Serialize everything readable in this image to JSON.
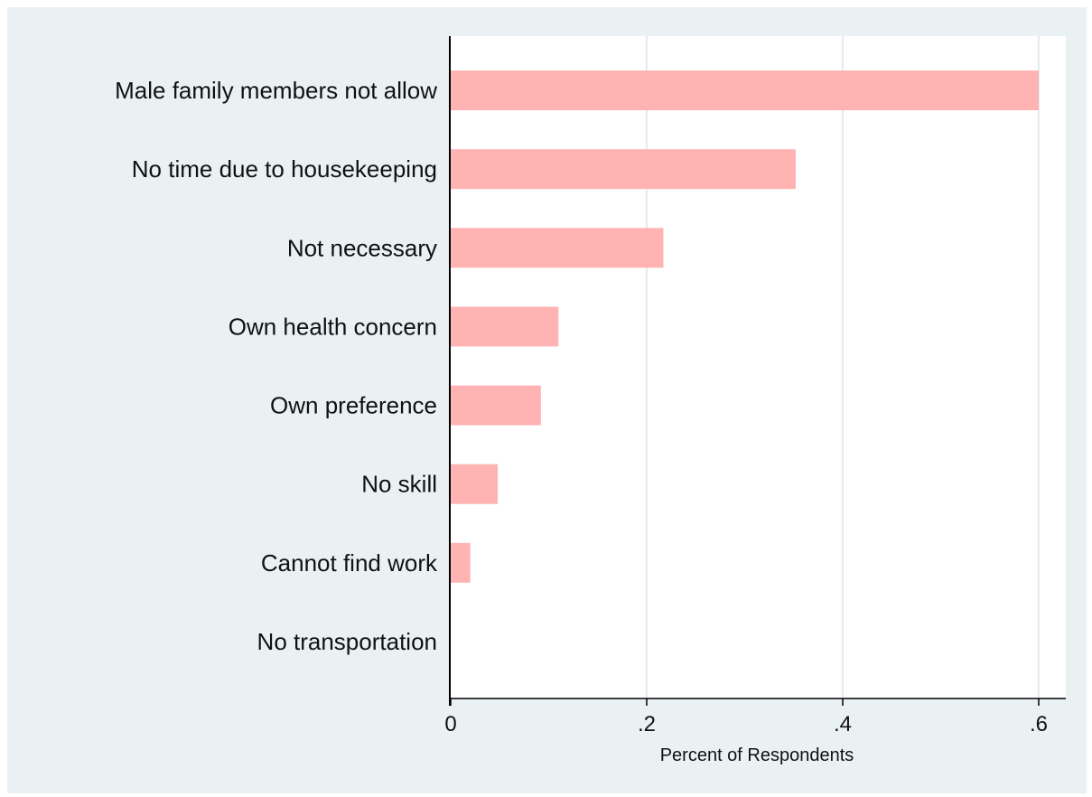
{
  "chart_data": {
    "type": "bar",
    "orientation": "horizontal",
    "categories": [
      "Male family members not allow",
      "No time due to housekeeping",
      "Not necessary",
      "Own health concern",
      "Own preference",
      "No skill",
      "Cannot find work",
      "No transportation"
    ],
    "values": [
      0.6,
      0.352,
      0.217,
      0.11,
      0.092,
      0.048,
      0.02,
      0
    ],
    "x_ticks": [
      {
        "value": 0,
        "label": "0"
      },
      {
        "value": 0.2,
        "label": ".2"
      },
      {
        "value": 0.4,
        "label": ".4"
      },
      {
        "value": 0.6,
        "label": ".6"
      }
    ],
    "xlim": [
      0,
      0.63
    ],
    "xlabel": "Percent of Respondents",
    "ylabel": "",
    "title": "",
    "grid": "vertical",
    "legend": "none",
    "colors": {
      "background": "#eaf1f3",
      "plot_area": "#ffffff",
      "bar": "#ffb3b3",
      "grid": "#e3ebee",
      "axis": "#000000",
      "text": "#111111"
    }
  }
}
